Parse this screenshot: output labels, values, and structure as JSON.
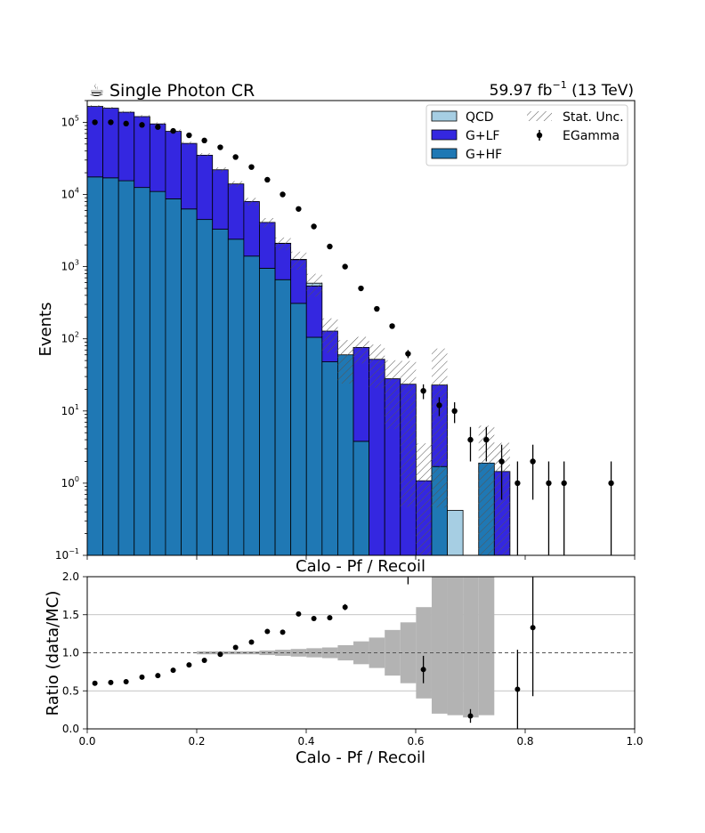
{
  "header": {
    "title": "Single Photon CR",
    "lumi": "59.97 fb",
    "lumi_exp": "−1",
    "energy": " (13 TeV)",
    "logo_icon": "coffee-cup-icon"
  },
  "chart_data": [
    {
      "type": "area",
      "panel": "main",
      "ylabel": "Events",
      "xlabel": "Calo - Pf / Recoil",
      "yscale": "log",
      "ylim": [
        0.1,
        200000
      ],
      "xlim": [
        0.0,
        1.0
      ],
      "yticks": [
        {
          "v": 100000,
          "m": "10",
          "e": "5"
        },
        {
          "v": 10000,
          "m": "10",
          "e": "4"
        },
        {
          "v": 1000,
          "m": "10",
          "e": "3"
        },
        {
          "v": 100,
          "m": "10",
          "e": "2"
        },
        {
          "v": 10,
          "m": "10",
          "e": "1"
        },
        {
          "v": 1,
          "m": "10",
          "e": "0"
        },
        {
          "v": 0.1,
          "m": "10",
          "e": "−1"
        }
      ],
      "bin_width": 0.0286,
      "legend_position": "top-right",
      "legend": {
        "qcd": "QCD",
        "glf": "G+LF",
        "ghf": "G+HF",
        "unc": "Stat. Unc.",
        "data": "EGamma"
      },
      "colors": {
        "qcd": "#a6cee3",
        "glf": "#3427e0",
        "ghf": "#1f78b4",
        "data": "#000000"
      },
      "series": [
        {
          "name": "G+HF",
          "key": "ghf",
          "values": [
            17500,
            17000,
            15500,
            12500,
            11000,
            8700,
            6300,
            4500,
            3300,
            2400,
            1400,
            950,
            660,
            310,
            105,
            48,
            60,
            3.8,
            0,
            0,
            0,
            0,
            1.7,
            0,
            0,
            1.9,
            0,
            0,
            0
          ]
        },
        {
          "name": "G+LF",
          "key": "glf",
          "values": [
            148500,
            140000,
            122500,
            107500,
            84000,
            66300,
            44700,
            30500,
            18700,
            11600,
            6600,
            3150,
            1440,
            940,
            435,
            80,
            0,
            72.2,
            52,
            28,
            23.5,
            1.08,
            21.2,
            0,
            0,
            0,
            1.45,
            0,
            0
          ]
        },
        {
          "name": "QCD",
          "key": "qcd",
          "values": [
            0,
            0,
            0,
            0,
            0,
            0,
            0,
            0,
            0,
            0,
            0,
            0,
            10,
            10,
            50,
            0,
            0,
            0,
            0,
            0,
            0,
            0,
            0,
            0.42,
            0,
            0,
            0,
            0,
            0
          ]
        }
      ],
      "unc_rel": [
        0.04,
        0.04,
        0.04,
        0.05,
        0.05,
        0.06,
        0.06,
        0.07,
        0.08,
        0.09,
        0.12,
        0.15,
        0.2,
        0.28,
        0.35,
        0.5,
        0.6,
        0.4,
        0.6,
        0.8,
        1.1,
        2.3,
        2.2,
        0.0,
        0.0,
        2.3,
        1.5,
        0.0,
        0.0
      ],
      "data_points": [
        {
          "x": 0.014,
          "y": 100000,
          "e": 0
        },
        {
          "x": 0.043,
          "y": 100000,
          "e": 0
        },
        {
          "x": 0.071,
          "y": 96000,
          "e": 0
        },
        {
          "x": 0.1,
          "y": 92000,
          "e": 0
        },
        {
          "x": 0.129,
          "y": 86000,
          "e": 0
        },
        {
          "x": 0.157,
          "y": 76000,
          "e": 0
        },
        {
          "x": 0.186,
          "y": 66000,
          "e": 0
        },
        {
          "x": 0.214,
          "y": 56000,
          "e": 0
        },
        {
          "x": 0.243,
          "y": 45000,
          "e": 0
        },
        {
          "x": 0.271,
          "y": 33000,
          "e": 0
        },
        {
          "x": 0.3,
          "y": 24000,
          "e": 0
        },
        {
          "x": 0.329,
          "y": 16000,
          "e": 0
        },
        {
          "x": 0.357,
          "y": 10000,
          "e": 0
        },
        {
          "x": 0.386,
          "y": 6300,
          "e": 0
        },
        {
          "x": 0.414,
          "y": 3600,
          "e": 0
        },
        {
          "x": 0.443,
          "y": 1900,
          "e": 0
        },
        {
          "x": 0.471,
          "y": 1000,
          "e": 0
        },
        {
          "x": 0.5,
          "y": 500,
          "e": 0
        },
        {
          "x": 0.529,
          "y": 260,
          "e": 0
        },
        {
          "x": 0.557,
          "y": 150,
          "e": 0
        },
        {
          "x": 0.586,
          "y": 62,
          "e": 8
        },
        {
          "x": 0.614,
          "y": 19,
          "e": 4.4
        },
        {
          "x": 0.643,
          "y": 12,
          "e": 3.5
        },
        {
          "x": 0.671,
          "y": 10,
          "e": 3.2
        },
        {
          "x": 0.7,
          "y": 4,
          "e": 2
        },
        {
          "x": 0.729,
          "y": 4,
          "e": 2
        },
        {
          "x": 0.757,
          "y": 2,
          "e": 1.41
        },
        {
          "x": 0.786,
          "y": 1,
          "e": 1
        },
        {
          "x": 0.814,
          "y": 2,
          "e": 1.41
        },
        {
          "x": 0.843,
          "y": 1,
          "e": 1
        },
        {
          "x": 0.871,
          "y": 1,
          "e": 1
        },
        {
          "x": 0.957,
          "y": 1,
          "e": 1
        }
      ]
    },
    {
      "type": "scatter",
      "panel": "ratio",
      "title": "Calo - Pf / Recoil",
      "xlabel": "Calo - Pf / Recoil",
      "ylabel": "Ratio (data/MC)",
      "ylim": [
        0.0,
        2.0
      ],
      "xlim": [
        0.0,
        1.0
      ],
      "grid": true,
      "yticks": [
        "0.0",
        "0.5",
        "1.0",
        "1.5",
        "2.0"
      ],
      "xticks": [
        "0.0",
        "0.2",
        "0.4",
        "0.6",
        "0.8",
        "1.0"
      ],
      "unc_band": [
        0.0,
        0.0,
        0.0,
        0.0,
        0.0,
        0.0,
        0.0,
        0.02,
        0.02,
        0.02,
        0.02,
        0.03,
        0.04,
        0.05,
        0.06,
        0.07,
        0.1,
        0.15,
        0.2,
        0.3,
        0.4,
        0.6,
        0.8,
        0.82,
        0.85,
        0.0,
        0.0,
        0.0,
        0.0
      ],
      "unc_band_high": [
        0.0,
        0.0,
        0.0,
        0.0,
        0.0,
        0.0,
        0.0,
        0.0,
        0.0,
        0.0,
        0.0,
        0.0,
        0.0,
        0.0,
        0.0,
        0.0,
        0.0,
        0.0,
        0.0,
        0.0,
        0.0,
        0.0,
        0.0,
        0.0,
        0.0,
        0.0,
        0.0,
        0.0,
        0.0
      ],
      "points": [
        {
          "x": 0.014,
          "y": 0.6,
          "e": 0
        },
        {
          "x": 0.043,
          "y": 0.61,
          "e": 0
        },
        {
          "x": 0.071,
          "y": 0.62,
          "e": 0
        },
        {
          "x": 0.1,
          "y": 0.68,
          "e": 0
        },
        {
          "x": 0.129,
          "y": 0.7,
          "e": 0
        },
        {
          "x": 0.157,
          "y": 0.77,
          "e": 0
        },
        {
          "x": 0.186,
          "y": 0.84,
          "e": 0
        },
        {
          "x": 0.214,
          "y": 0.9,
          "e": 0
        },
        {
          "x": 0.243,
          "y": 0.98,
          "e": 0
        },
        {
          "x": 0.271,
          "y": 1.07,
          "e": 0
        },
        {
          "x": 0.3,
          "y": 1.14,
          "e": 0
        },
        {
          "x": 0.329,
          "y": 1.28,
          "e": 0
        },
        {
          "x": 0.357,
          "y": 1.27,
          "e": 0
        },
        {
          "x": 0.386,
          "y": 1.51,
          "e": 0
        },
        {
          "x": 0.414,
          "y": 1.45,
          "e": 0
        },
        {
          "x": 0.443,
          "y": 1.46,
          "e": 0
        },
        {
          "x": 0.471,
          "y": 1.6,
          "e": 0.04
        },
        {
          "x": 0.586,
          "y": 2.2,
          "e": 0.3
        },
        {
          "x": 0.614,
          "y": 0.78,
          "e": 0.18
        },
        {
          "x": 0.7,
          "y": 0.17,
          "e": 0.09
        },
        {
          "x": 0.786,
          "y": 0.52,
          "e": 0.52
        },
        {
          "x": 0.814,
          "y": 1.33,
          "e": 0.9
        }
      ]
    }
  ]
}
